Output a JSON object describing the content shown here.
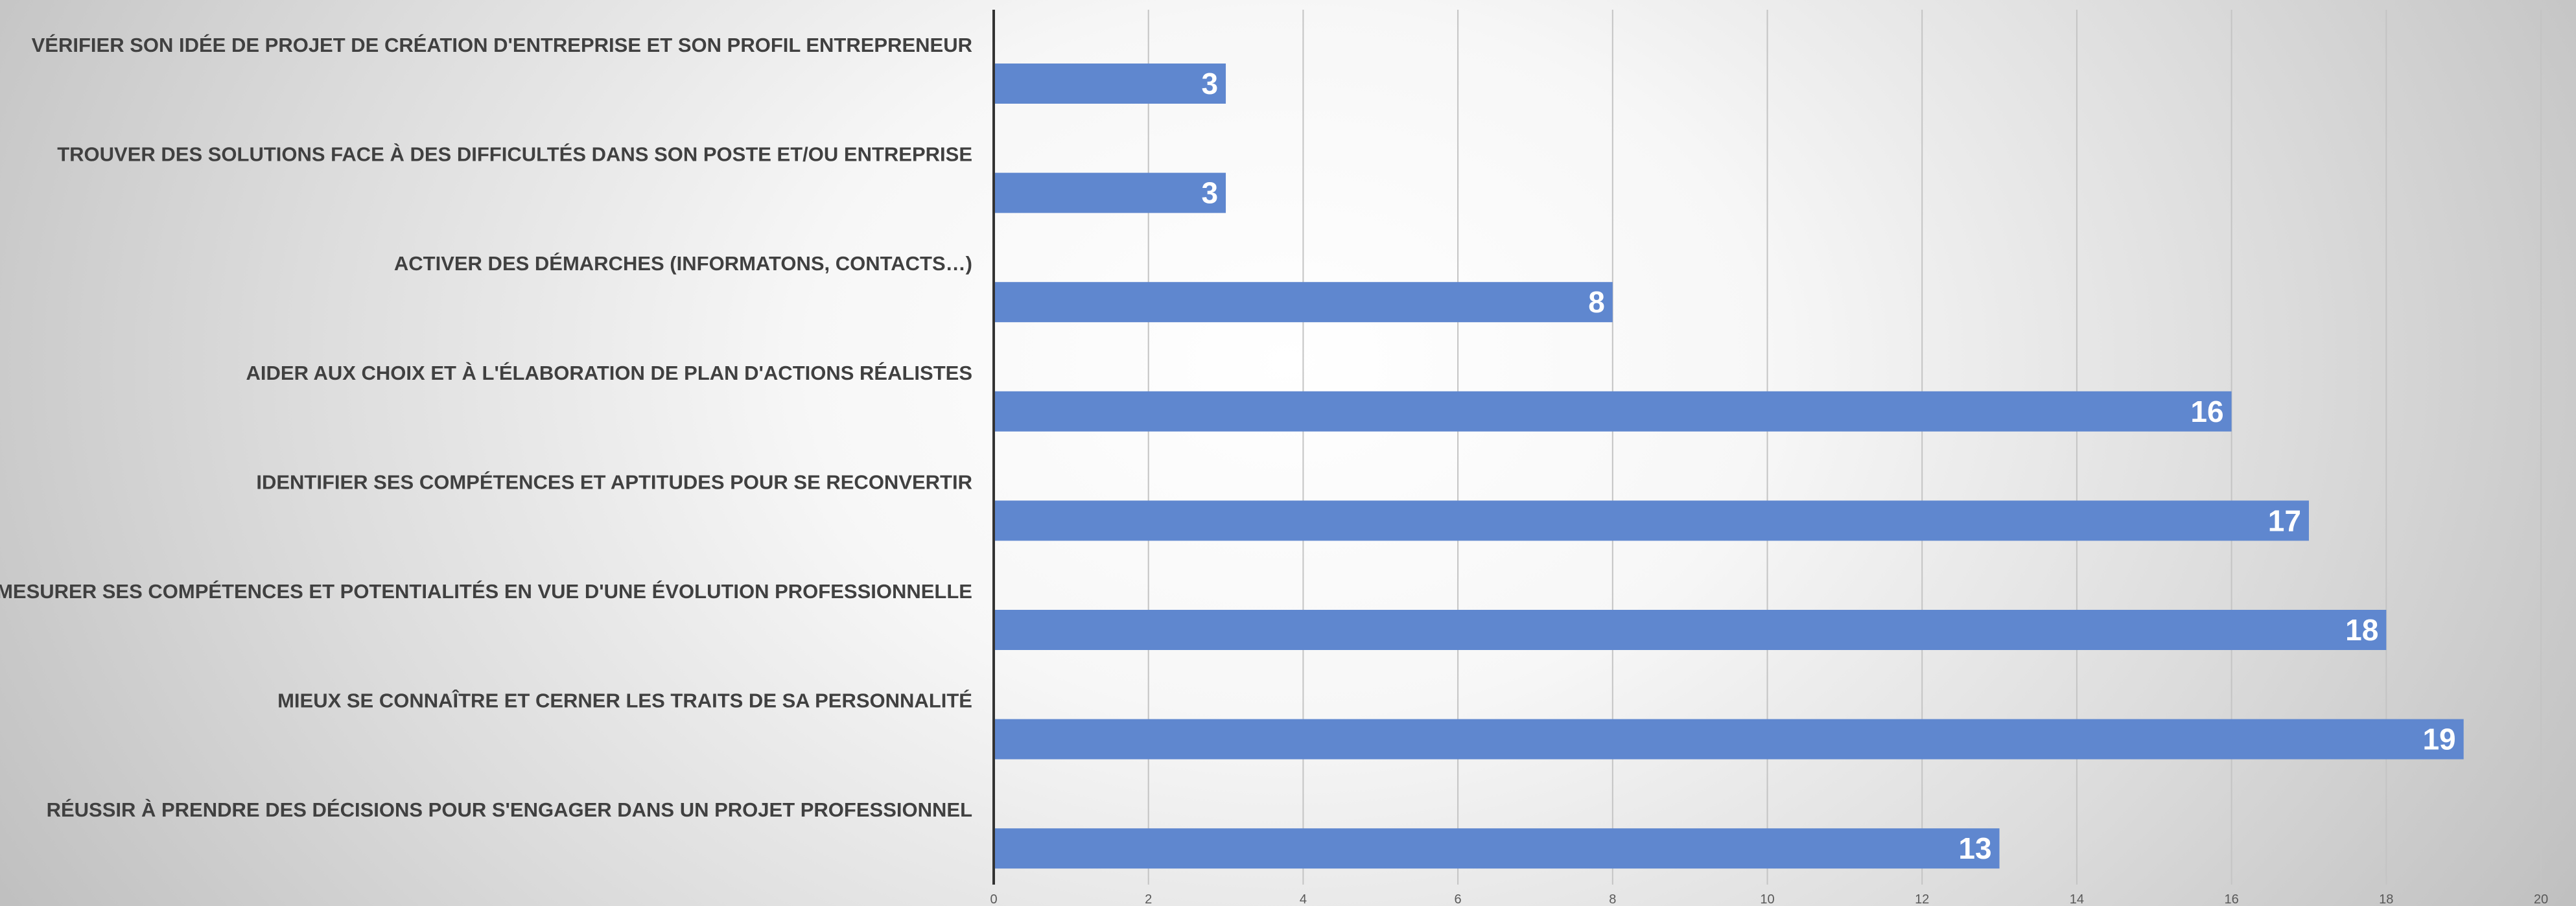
{
  "chart_data": {
    "type": "bar",
    "orientation": "horizontal",
    "categories": [
      "VÉRIFIER SON IDÉE DE PROJET DE CRÉATION D'ENTREPRISE ET SON PROFIL ENTREPRENEUR",
      "TROUVER DES SOLUTIONS FACE À DES DIFFICULTÉS DANS SON POSTE ET/OU ENTREPRISE",
      "ACTIVER DES DÉMARCHES (INFORMATONS, CONTACTS…)",
      "AIDER AUX CHOIX ET À L'ÉLABORATION DE PLAN D'ACTIONS RÉALISTES",
      "IDENTIFIER SES COMPÉTENCES ET APTITUDES POUR SE RECONVERTIR",
      "MESURER SES COMPÉTENCES ET POTENTIALITÉS EN VUE D'UNE ÉVOLUTION PROFESSIONNELLE",
      "MIEUX SE CONNAÎTRE ET CERNER LES TRAITS DE SA PERSONNALITÉ",
      "RÉUSSIR À PRENDRE DES DÉCISIONS POUR S'ENGAGER DANS UN PROJET PROFESSIONNEL"
    ],
    "values": [
      3,
      3,
      8,
      16,
      17,
      18,
      19,
      13
    ],
    "data_labels": [
      "3",
      "3",
      "8",
      "16",
      "17",
      "18",
      "19",
      "13"
    ],
    "xlim": [
      0,
      20
    ],
    "x_ticks": [
      "0",
      "2",
      "4",
      "6",
      "8",
      "10",
      "12",
      "14",
      "16",
      "18",
      "20"
    ],
    "grid": "vertical",
    "legend": "none",
    "title": "",
    "xlabel": "",
    "ylabel": ""
  },
  "colors": {
    "bar": "#5f87cf",
    "gridline": "#c4c4c4",
    "axis": "#333333",
    "category_text": "#404040",
    "data_label_text": "#ffffff",
    "tick_text": "#595959"
  }
}
